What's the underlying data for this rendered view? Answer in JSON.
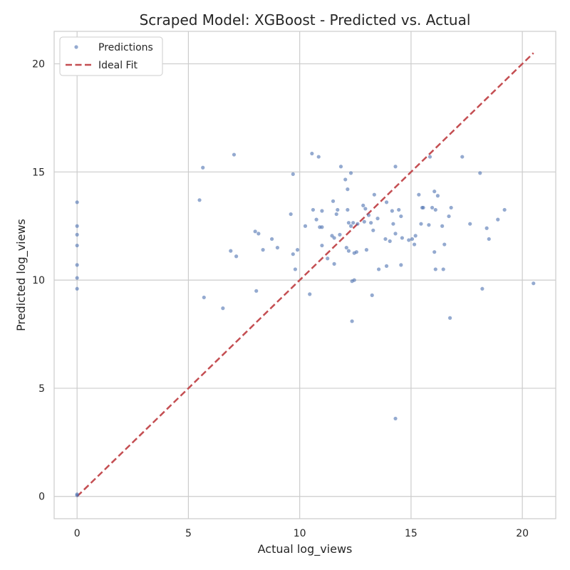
{
  "chart_data": {
    "type": "scatter",
    "title": "Scraped Model: XGBoost - Predicted vs. Actual",
    "xlabel": "Actual log_views",
    "ylabel": "Predicted log_views",
    "xlim": [
      -1.03,
      21.5
    ],
    "ylim": [
      -1.03,
      21.5
    ],
    "xticks": [
      0,
      5,
      10,
      15,
      20
    ],
    "yticks": [
      0,
      5,
      10,
      15,
      20
    ],
    "grid": true,
    "legend_position": "top-left",
    "legend": {
      "scatter_label": "Predictions",
      "line_label": "Ideal Fit"
    },
    "colors": {
      "points": "#4c72b0",
      "ideal_line": "#c44e52",
      "grid": "#cccccc",
      "axes_edge": "#cccccc"
    },
    "ideal_line": {
      "x": [
        0,
        20.5
      ],
      "y": [
        0,
        20.5
      ]
    },
    "series": [
      {
        "name": "Predictions",
        "points": [
          [
            0,
            13.6
          ],
          [
            0,
            12.5
          ],
          [
            0,
            12.1
          ],
          [
            0,
            11.6
          ],
          [
            0,
            10.7
          ],
          [
            0,
            10.1
          ],
          [
            0,
            9.6
          ],
          [
            0,
            0.1
          ],
          [
            0,
            0.05
          ],
          [
            5.5,
            13.7
          ],
          [
            5.65,
            15.2
          ],
          [
            5.7,
            9.2
          ],
          [
            6.55,
            8.7
          ],
          [
            6.9,
            11.35
          ],
          [
            7.05,
            15.8
          ],
          [
            7.15,
            11.1
          ],
          [
            8.0,
            12.25
          ],
          [
            8.05,
            9.5
          ],
          [
            8.15,
            12.15
          ],
          [
            8.35,
            11.4
          ],
          [
            8.75,
            11.9
          ],
          [
            9.0,
            11.5
          ],
          [
            9.6,
            13.05
          ],
          [
            9.7,
            14.9
          ],
          [
            9.7,
            11.2
          ],
          [
            9.8,
            10.5
          ],
          [
            9.9,
            11.4
          ],
          [
            10.25,
            12.5
          ],
          [
            10.45,
            9.35
          ],
          [
            10.55,
            15.85
          ],
          [
            10.6,
            13.25
          ],
          [
            10.75,
            12.8
          ],
          [
            10.85,
            15.7
          ],
          [
            10.9,
            12.45
          ],
          [
            11.0,
            12.45
          ],
          [
            11.0,
            11.6
          ],
          [
            11.0,
            13.2
          ],
          [
            11.25,
            11.0
          ],
          [
            11.45,
            12.05
          ],
          [
            11.5,
            13.65
          ],
          [
            11.55,
            11.95
          ],
          [
            11.55,
            10.75
          ],
          [
            11.65,
            13.05
          ],
          [
            11.7,
            13.25
          ],
          [
            11.8,
            12.1
          ],
          [
            11.85,
            15.25
          ],
          [
            12.05,
            14.65
          ],
          [
            12.1,
            11.5
          ],
          [
            12.15,
            14.2
          ],
          [
            12.15,
            13.25
          ],
          [
            12.2,
            12.65
          ],
          [
            12.2,
            11.35
          ],
          [
            12.3,
            12.5
          ],
          [
            12.3,
            14.95
          ],
          [
            12.35,
            9.95
          ],
          [
            12.4,
            12.65
          ],
          [
            12.45,
            10.0
          ],
          [
            12.45,
            11.25
          ],
          [
            12.55,
            11.3
          ],
          [
            12.6,
            12.6
          ],
          [
            12.35,
            8.1
          ],
          [
            12.85,
            13.45
          ],
          [
            12.9,
            12.7
          ],
          [
            12.95,
            13.3
          ],
          [
            13.0,
            11.4
          ],
          [
            13.1,
            13.0
          ],
          [
            13.2,
            12.65
          ],
          [
            13.25,
            9.3
          ],
          [
            13.3,
            12.3
          ],
          [
            13.35,
            13.95
          ],
          [
            13.5,
            12.85
          ],
          [
            13.55,
            10.5
          ],
          [
            13.85,
            11.9
          ],
          [
            13.9,
            13.6
          ],
          [
            13.9,
            10.65
          ],
          [
            14.05,
            11.8
          ],
          [
            14.15,
            13.2
          ],
          [
            14.2,
            12.6
          ],
          [
            14.3,
            12.15
          ],
          [
            14.3,
            15.25
          ],
          [
            14.3,
            3.6
          ],
          [
            14.45,
            13.25
          ],
          [
            14.55,
            12.95
          ],
          [
            14.55,
            10.7
          ],
          [
            14.6,
            11.95
          ],
          [
            14.9,
            11.85
          ],
          [
            15.05,
            11.9
          ],
          [
            15.15,
            11.65
          ],
          [
            15.2,
            12.05
          ],
          [
            15.35,
            13.95
          ],
          [
            15.45,
            12.6
          ],
          [
            15.5,
            13.35
          ],
          [
            15.55,
            13.35
          ],
          [
            15.8,
            12.55
          ],
          [
            15.85,
            15.7
          ],
          [
            15.95,
            13.35
          ],
          [
            16.05,
            14.1
          ],
          [
            16.05,
            11.3
          ],
          [
            16.1,
            13.25
          ],
          [
            16.1,
            10.5
          ],
          [
            16.2,
            13.9
          ],
          [
            16.4,
            12.5
          ],
          [
            16.45,
            10.5
          ],
          [
            16.5,
            11.65
          ],
          [
            16.7,
            12.95
          ],
          [
            16.75,
            8.25
          ],
          [
            16.8,
            13.35
          ],
          [
            17.3,
            15.7
          ],
          [
            17.65,
            12.6
          ],
          [
            18.1,
            14.95
          ],
          [
            18.2,
            9.6
          ],
          [
            18.4,
            12.4
          ],
          [
            18.5,
            11.9
          ],
          [
            18.9,
            12.8
          ],
          [
            19.2,
            13.25
          ],
          [
            20.5,
            9.85
          ]
        ]
      }
    ]
  }
}
